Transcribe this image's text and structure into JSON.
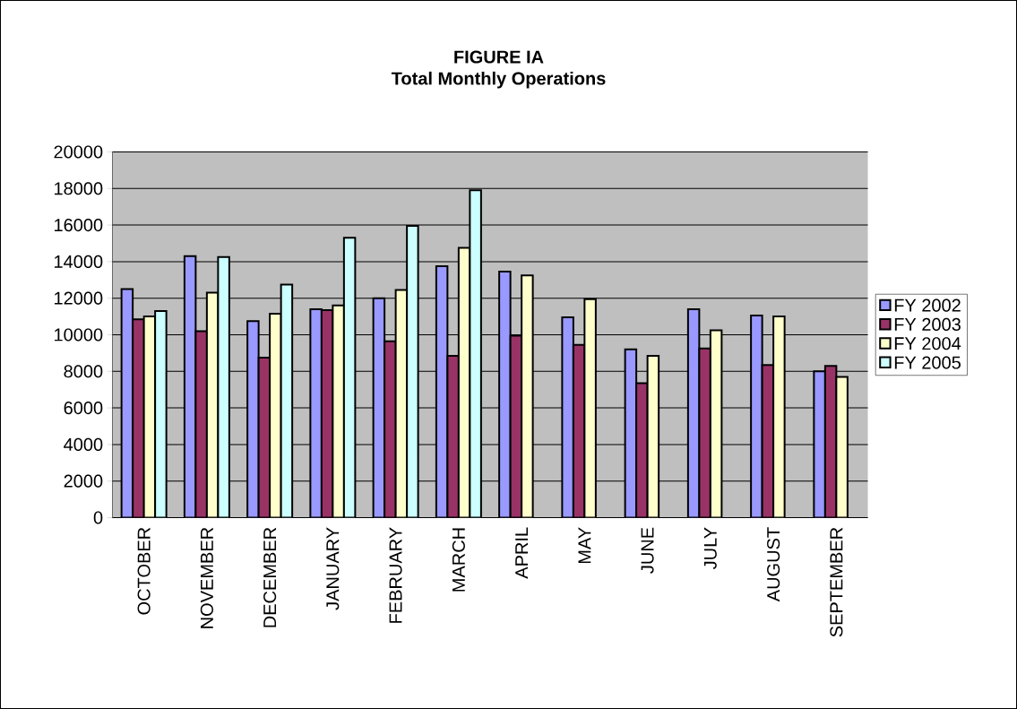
{
  "chart_data": {
    "type": "bar",
    "title": "FIGURE IA",
    "subtitle": "Total Monthly Operations",
    "categories": [
      "OCTOBER",
      "NOVEMBER",
      "DECEMBER",
      "JANUARY",
      "FEBRUARY",
      "MARCH",
      "APRIL",
      "MAY",
      "JUNE",
      "JULY",
      "AUGUST",
      "SEPTEMBER"
    ],
    "series": [
      {
        "name": "FY 2002",
        "color": "#9999ff",
        "values": [
          12500,
          14300,
          10750,
          11400,
          12000,
          13750,
          13450,
          10950,
          9200,
          11400,
          11050,
          8000
        ]
      },
      {
        "name": "FY 2003",
        "color": "#993366",
        "values": [
          10850,
          10200,
          8750,
          11350,
          9650,
          8850,
          9950,
          9450,
          7350,
          9250,
          8350,
          8300
        ]
      },
      {
        "name": "FY 2004",
        "color": "#ffffcc",
        "values": [
          11000,
          12300,
          11150,
          11600,
          12450,
          14750,
          13250,
          11950,
          8850,
          10250,
          11000,
          7700
        ]
      },
      {
        "name": "FY 2005",
        "color": "#ccffff",
        "values": [
          11300,
          14250,
          12750,
          15300,
          15950,
          17900,
          null,
          null,
          null,
          null,
          null,
          null
        ]
      }
    ],
    "ylim": [
      0,
      20000
    ],
    "yticks": [
      0,
      2000,
      4000,
      6000,
      8000,
      10000,
      12000,
      14000,
      16000,
      18000,
      20000
    ],
    "grid": "y",
    "legend": "right"
  }
}
